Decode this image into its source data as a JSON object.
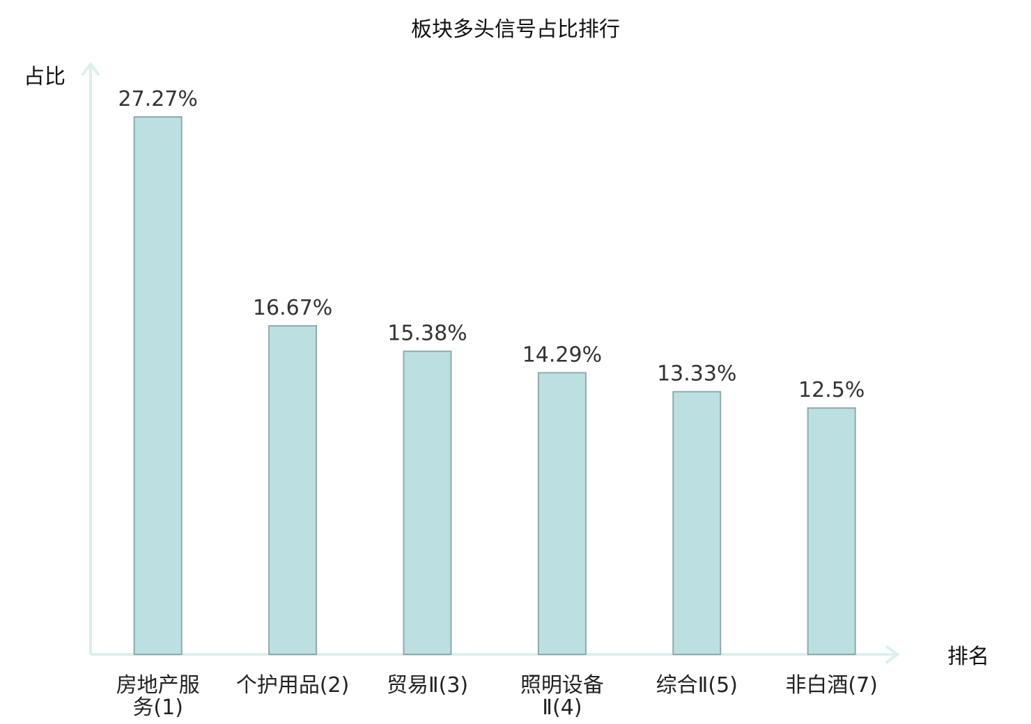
{
  "chart_data": {
    "type": "bar",
    "title": "板块多头信号占比排行",
    "ylabel": "占比",
    "xlabel": "排名",
    "categories": [
      [
        "房地产服",
        "务(1)"
      ],
      [
        "个护用品(2)"
      ],
      [
        "贸易Ⅱ(3)"
      ],
      [
        "照明设备",
        "Ⅱ(4)"
      ],
      [
        "综合Ⅱ(5)"
      ],
      [
        "非白酒(7)"
      ]
    ],
    "values": [
      27.27,
      16.67,
      15.38,
      14.29,
      13.33,
      12.5
    ],
    "value_labels": [
      "27.27%",
      "16.67%",
      "15.38%",
      "14.29%",
      "13.33%",
      "12.5%"
    ],
    "highlight_color": "#e0181b",
    "highlight_index": 5,
    "bar_color": "#bce0e2",
    "bar_border_color": "#8fa9aa",
    "axis_color": "#dcefed",
    "ylim": [
      0,
      27.27
    ],
    "grid": false
  }
}
